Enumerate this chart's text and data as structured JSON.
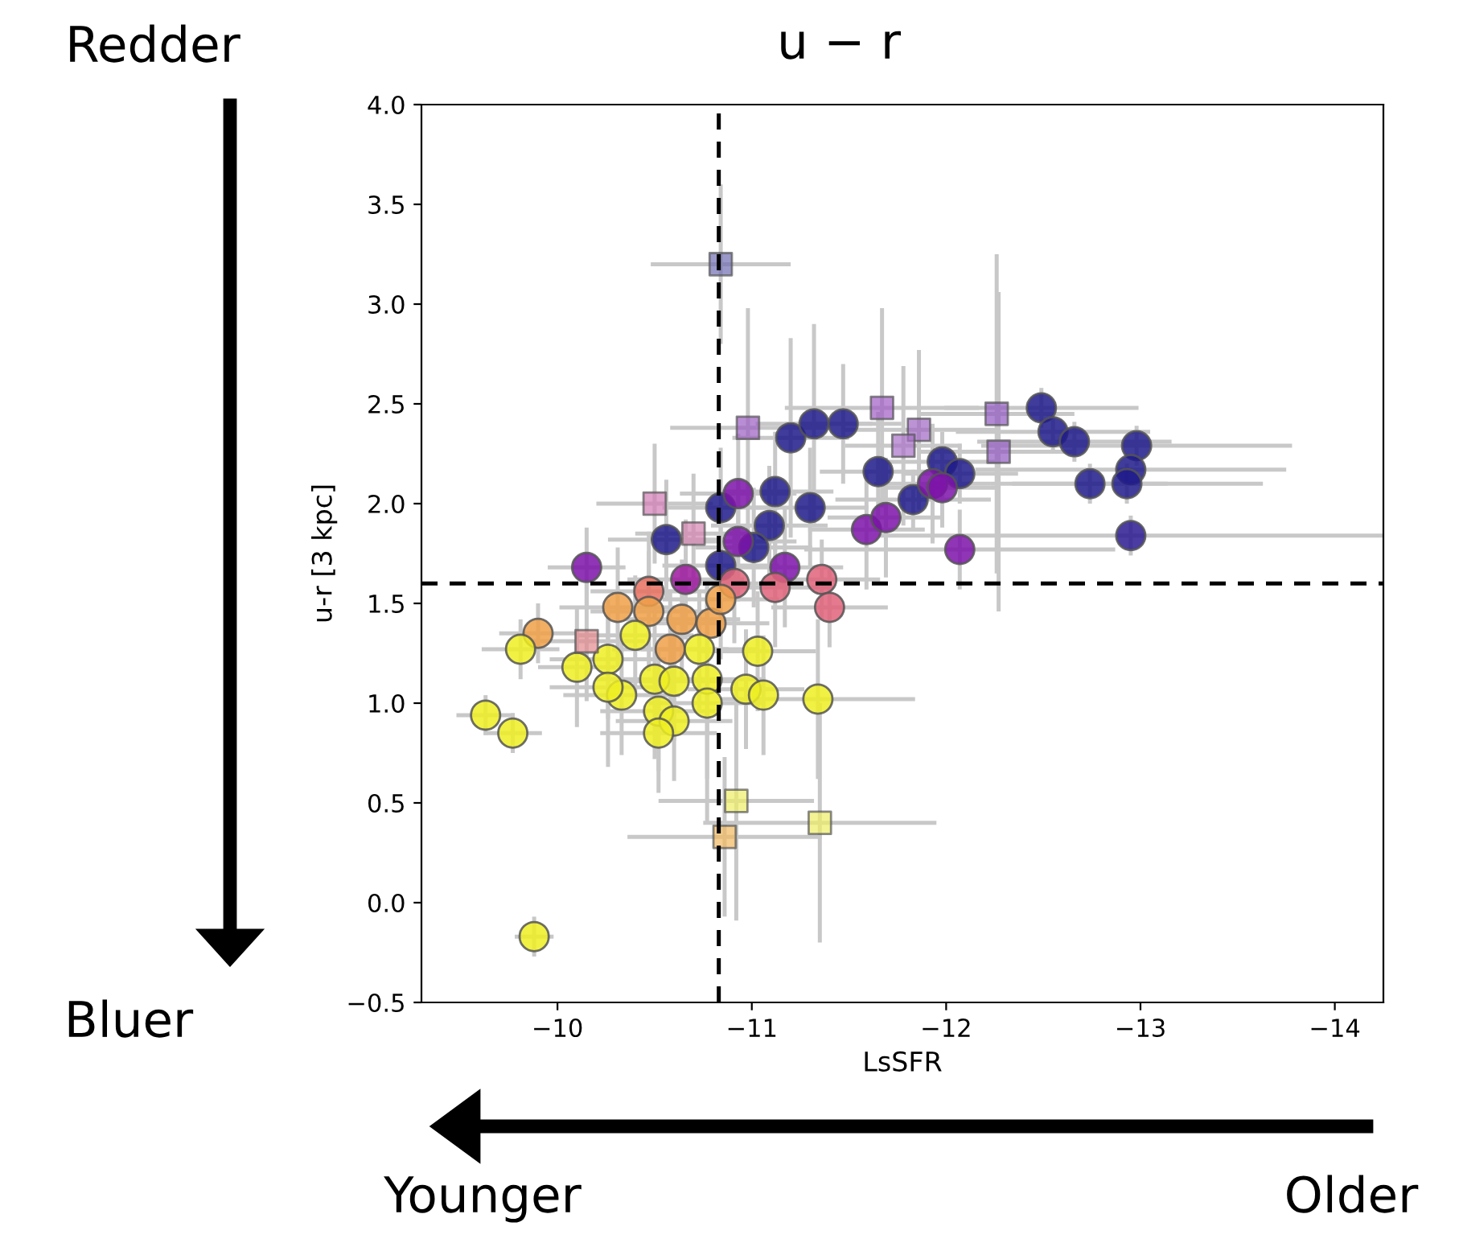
{
  "chart_data": {
    "type": "scatter",
    "title": "u − r",
    "xlabel": "LsSFR",
    "ylabel": "u-r [3 kpc]",
    "annotations": [
      "Redder",
      "Bluer",
      "Younger",
      "Older"
    ],
    "xlim": [
      -9.3,
      -14.25
    ],
    "ylim": [
      -0.5,
      4.0
    ],
    "xticks": [
      {
        "value": -10,
        "label": "−10"
      },
      {
        "value": -11,
        "label": "−11"
      },
      {
        "value": -12,
        "label": "−12"
      },
      {
        "value": -13,
        "label": "−13"
      },
      {
        "value": -14,
        "label": "−14"
      }
    ],
    "yticks": [
      {
        "value": -0.5,
        "label": "−0.5"
      },
      {
        "value": 0,
        "label": "0.0"
      },
      {
        "value": 0.5,
        "label": "0.5"
      },
      {
        "value": 1,
        "label": "1.0"
      },
      {
        "value": 1.5,
        "label": "1.5"
      },
      {
        "value": 2,
        "label": "2.0"
      },
      {
        "value": 2.5,
        "label": "2.5"
      },
      {
        "value": 3,
        "label": "3.0"
      },
      {
        "value": 3.5,
        "label": "3.5"
      },
      {
        "value": 4,
        "label": "4.0"
      }
    ],
    "grid": false,
    "ref_lines": [
      {
        "axis": "x",
        "value": -10.83,
        "color": "#000000",
        "line_style": "dashed"
      },
      {
        "axis": "y",
        "value": 1.6,
        "color": "#000000",
        "line_style": "dashed"
      }
    ],
    "series": [
      {
        "marker": "circle",
        "x": [
          -12.49,
          -12.55,
          -12.66,
          -12.74,
          -12.98,
          -12.95,
          -12.93,
          -12.95,
          -11.98,
          -12.07,
          -11.83,
          -11.2,
          -11.32,
          -11.47,
          -11.65,
          -11.12,
          -11.3,
          -10.84,
          -11.09,
          -10.56,
          -10.84,
          -11.01,
          -10.93,
          -10.15,
          -10.66,
          -10.93,
          -11.17,
          -11.59,
          -11.69,
          -11.93,
          -11.98,
          -12.07,
          -10.91,
          -11.12,
          -11.36,
          -11.4,
          -10.47,
          -10.31,
          -10.47,
          -9.9,
          -10.58,
          -10.64,
          -10.79,
          -10.84,
          -9.81,
          -10.1,
          -10.26,
          -10.4,
          -10.73,
          -10.5,
          -10.6,
          -10.77,
          -10.33,
          -10.26,
          -10.77,
          -10.52,
          -10.6,
          -10.52,
          -11.03,
          -10.97,
          -11.06,
          -11.34,
          -9.63,
          -9.77,
          -9.88
        ],
        "values": [
          2.48,
          2.36,
          2.31,
          2.1,
          2.29,
          2.17,
          2.1,
          1.84,
          2.21,
          2.15,
          2.02,
          2.33,
          2.4,
          2.4,
          2.16,
          2.06,
          1.98,
          1.98,
          1.89,
          1.82,
          1.69,
          1.78,
          2.05,
          1.68,
          1.62,
          1.81,
          1.68,
          1.87,
          1.93,
          2.1,
          2.08,
          1.77,
          1.6,
          1.58,
          1.62,
          1.48,
          1.56,
          1.48,
          1.46,
          1.35,
          1.27,
          1.42,
          1.4,
          1.52,
          1.27,
          1.18,
          1.22,
          1.34,
          1.27,
          1.12,
          1.11,
          1.12,
          1.04,
          1.08,
          1.0,
          0.96,
          0.91,
          0.85,
          1.26,
          1.07,
          1.04,
          1.02,
          0.94,
          0.85,
          -0.17
        ],
        "xerrors": [
          0.5,
          0.5,
          0.5,
          0.4,
          0.8,
          0.8,
          0.7,
          1.3,
          0.3,
          0.3,
          0.4,
          0.3,
          0.3,
          0.3,
          0.3,
          0.3,
          0.3,
          0.3,
          0.3,
          0.3,
          0.3,
          0.3,
          0.3,
          0.2,
          0.3,
          0.3,
          0.3,
          0.3,
          0.3,
          0.3,
          0.3,
          0.8,
          0.3,
          0.3,
          0.3,
          0.3,
          0.3,
          0.3,
          0.3,
          0.2,
          0.3,
          0.3,
          0.3,
          0.3,
          0.2,
          0.2,
          0.3,
          0.3,
          0.3,
          0.3,
          0.3,
          0.3,
          0.3,
          0.3,
          0.3,
          0.3,
          0.3,
          0.3,
          0.3,
          0.3,
          null,
          0.5,
          0.15,
          0.15,
          0.1
        ],
        "errors": [
          0.1,
          0.1,
          0.1,
          0.1,
          0.1,
          null,
          0.1,
          0.1,
          0.15,
          0.15,
          0.15,
          0.5,
          0.5,
          0.3,
          0.3,
          0.3,
          0.3,
          0.3,
          0.3,
          0.3,
          0.3,
          0.3,
          0.3,
          0.2,
          0.3,
          0.3,
          0.3,
          0.3,
          0.3,
          0.3,
          0.2,
          0.2,
          0.3,
          0.3,
          0.2,
          0.2,
          0.3,
          0.3,
          0.3,
          0.15,
          0.3,
          0.3,
          null,
          0.3,
          0.15,
          0.3,
          0.3,
          0.3,
          0.3,
          0.4,
          0.3,
          0.5,
          0.3,
          0.4,
          0.6,
          0.3,
          0.3,
          0.3,
          0.3,
          0.3,
          0.3,
          0.4,
          0.1,
          0.1,
          0.1
        ],
        "colors": [
          "#1f1a8a",
          "#1f1a8a",
          "#1f1a8a",
          "#1f1a8a",
          "#1f1a8a",
          "#1f1a8a",
          "#1f1a8a",
          "#2a1a90",
          "#1f1a8a",
          "#1f1a8a",
          "#1f1a8a",
          "#1f1a8a",
          "#1f1a8a",
          "#1f1a8a",
          "#1f1a8a",
          "#1f1a8a",
          "#1f1a8a",
          "#1f1a8a",
          "#1f1a8a",
          "#1f1a8a",
          "#1f1a8a",
          "#1f1a8a",
          "#7b12a8",
          "#7b12a8",
          "#9c179e",
          "#7b12a8",
          "#7b12a8",
          "#7b12a8",
          "#7b12a8",
          "#7b12a8",
          "#7b12a8",
          "#7b12a8",
          "#e0637a",
          "#e0637a",
          "#e0637a",
          "#e0637a",
          "#e87060",
          "#f0a048",
          "#f0a048",
          "#f0a048",
          "#f0a048",
          "#f0a048",
          "#f0a048",
          "#f0a048",
          "#eeee22",
          "#eeee22",
          "#eeee22",
          "#eeee22",
          "#eeee22",
          "#eeee22",
          "#eeee22",
          "#eeee22",
          "#eeee22",
          "#eeee22",
          "#eeee22",
          "#eeee22",
          "#eeee22",
          "#eeee22",
          "#eeee22",
          "#eeee22",
          "#eeee22",
          "#eeee22",
          "#eeee22",
          "#eeee22",
          "#eeee22"
        ]
      },
      {
        "marker": "square",
        "x": [
          -10.84,
          -10.98,
          -10.5,
          -10.7,
          -10.15,
          -11.67,
          -11.86,
          -11.78,
          -12.26,
          -12.27,
          -10.92,
          -10.86,
          -11.35
        ],
        "values": [
          3.2,
          2.38,
          2.0,
          1.85,
          1.31,
          2.48,
          2.37,
          2.29,
          2.45,
          2.26,
          0.51,
          0.33,
          0.4
        ],
        "xerrors": [
          0.36,
          0.4,
          0.3,
          0.3,
          0.3,
          0.5,
          0.4,
          0.3,
          0.4,
          0.4,
          0.4,
          0.5,
          0.6
        ],
        "errors": [
          0.4,
          0.6,
          0.3,
          0.3,
          0.3,
          0.5,
          0.4,
          0.4,
          0.8,
          0.8,
          0.6,
          0.4,
          0.6
        ],
        "colors": [
          "#6f6cb0",
          "#9b5cc0",
          "#d07bb5",
          "#d683b0",
          "#e3898f",
          "#a05cc4",
          "#a066c4",
          "#a870c8",
          "#9058c0",
          "#9058c0",
          "#eeee66",
          "#f0b860",
          "#eeee66"
        ]
      }
    ]
  }
}
